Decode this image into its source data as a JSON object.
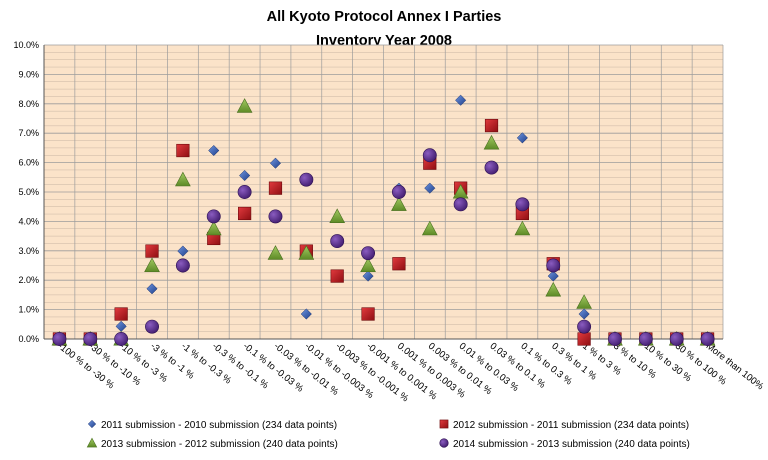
{
  "chart_data": {
    "type": "scatter",
    "title": "All Kyoto Protocol Annex I Parties",
    "subtitle": "Inventory  Year 2008",
    "xlabel": "",
    "ylabel": "",
    "ylim": [
      0,
      10
    ],
    "y_ticks": [
      "0.0%",
      "1.0%",
      "2.0%",
      "3.0%",
      "4.0%",
      "5.0%",
      "6.0%",
      "7.0%",
      "8.0%",
      "9.0%",
      "10.0%"
    ],
    "grid": true,
    "legend_position": "bottom",
    "categories": [
      "-100 % to -30 %",
      "-30 % to -10 %",
      "-10 % to -3 %",
      "-3 % to -1 %",
      "-1 % to -0.3 %",
      "-0.3 % to -0.1 %",
      "-0.1 % to -0.03 %",
      "-0.03 % to -0.01 %",
      "-0.01 % to -0.003 %",
      "-0.003 % to -0.001 %",
      "-0.001 % to 0.001 %",
      "0.001 % to 0.003 %",
      "0.003 % to 0.01 %",
      "0.01 % to 0.03 %",
      "0.03 % to 0.1 %",
      "0.1 % to 0.3 %",
      "0.3 % to 1 %",
      "1 % to 3 %",
      "3 % to 10 %",
      "10 % to 30 %",
      "30 % to 100 %",
      "More than 100%"
    ],
    "series": [
      {
        "name": "2011 submission - 2010 submission (234 data points)",
        "marker": "diamond",
        "color": "#2E5CB8",
        "values": [
          0.0,
          0.0,
          0.43,
          1.71,
          2.99,
          6.41,
          5.56,
          5.98,
          0.85,
          null,
          2.14,
          5.13,
          5.13,
          8.12,
          null,
          6.84,
          2.14,
          0.85,
          0.0,
          0.0,
          0.0,
          0.0
        ]
      },
      {
        "name": "2012 submission - 2011 submission (234 data points)",
        "marker": "square",
        "color": "#C0161B",
        "values": [
          0.0,
          0.0,
          0.85,
          2.99,
          6.41,
          3.42,
          4.27,
          5.13,
          2.99,
          2.14,
          0.85,
          2.56,
          5.98,
          5.13,
          7.26,
          4.27,
          2.56,
          0.0,
          0.0,
          0.0,
          0.0,
          0.0
        ]
      },
      {
        "name": "2013 submission - 2012 submission (240 data points)",
        "marker": "triangle",
        "color": "#77A33A",
        "values": [
          0.0,
          0.0,
          0.0,
          2.5,
          5.42,
          3.75,
          7.92,
          2.92,
          2.92,
          4.17,
          2.5,
          4.58,
          3.75,
          5.0,
          6.67,
          3.75,
          1.67,
          1.25,
          0.0,
          0.0,
          0.0,
          0.0
        ]
      },
      {
        "name": "2014 submission - 2013 submission (240 data points)",
        "marker": "circle",
        "color": "#5B2E8C",
        "values": [
          0.0,
          0.0,
          0.0,
          0.42,
          2.5,
          4.17,
          5.0,
          4.17,
          5.42,
          3.33,
          2.92,
          5.0,
          6.25,
          4.58,
          5.83,
          4.58,
          2.5,
          0.42,
          0.0,
          0.0,
          0.0,
          0.0
        ]
      }
    ]
  }
}
